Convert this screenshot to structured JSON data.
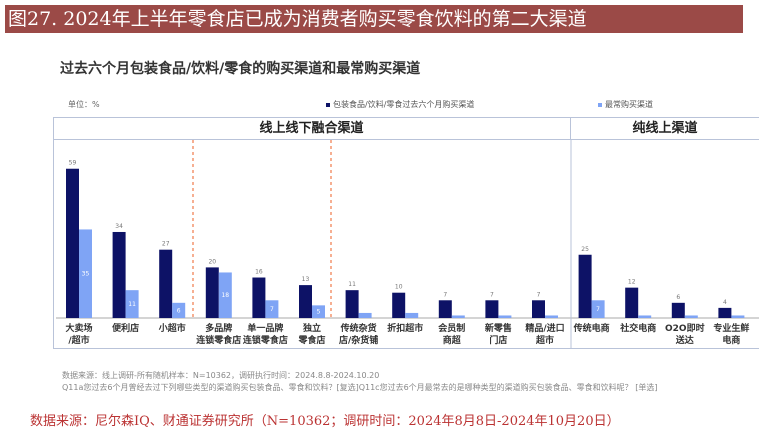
{
  "banner": "图27. 2024年上半年零食店已成为消费者购买零食饮料的第二大渠道",
  "source": "数据来源：尼尔森IQ、财通证券研究所（N=10362；调研时间：2024年8月8日-2024年10月20日）",
  "colors": {
    "dark": "#0d1266",
    "light": "#7fa4f5",
    "banner": "#9b4a47",
    "divider": "#f07a4a"
  },
  "chart_data": {
    "type": "bar",
    "title": "过去六个月包装食品/饮料/零食的购买渠道和最常购买渠道",
    "unit": "单位：%",
    "groups": [
      {
        "label": "线上线下融合渠道"
      },
      {
        "label": "纯线上渠道"
      }
    ],
    "categories": [
      "大卖场/超市",
      "便利店",
      "小超市",
      "多品牌连锁零食店",
      "单一品牌连锁零食店",
      "独立零食店",
      "传统杂货店/杂货铺",
      "折扣超市",
      "会员制商超",
      "新零售门店",
      "精品/进口超市",
      "传统电商",
      "社交电商",
      "O2O即时送达",
      "专业生鲜电商"
    ],
    "category_lines": [
      [
        "大卖场",
        "/超市"
      ],
      [
        "便利店"
      ],
      [
        "小超市"
      ],
      [
        "多品牌",
        "连锁零食店"
      ],
      [
        "单一品牌",
        "连锁零食店"
      ],
      [
        "独立",
        "零食店"
      ],
      [
        "传统杂货",
        "店/杂货铺"
      ],
      [
        "折扣超市"
      ],
      [
        "会员制",
        "商超"
      ],
      [
        "新零售",
        "门店"
      ],
      [
        "精品/进口",
        "超市"
      ],
      [
        "传统电商"
      ],
      [
        "社交电商"
      ],
      [
        "O2O即时",
        "送达"
      ],
      [
        "专业生鲜",
        "电商"
      ]
    ],
    "series": [
      {
        "name": "包装食品/饮料/零食过去六个月购买渠道",
        "values": [
          59,
          34,
          27,
          20,
          16,
          13,
          11,
          10,
          7,
          7,
          7,
          25,
          12,
          6,
          4
        ]
      },
      {
        "name": "最常购买渠道",
        "values": [
          35,
          11,
          6,
          18,
          7,
          5,
          2,
          2,
          1,
          1,
          1,
          7,
          1,
          1,
          1
        ]
      }
    ],
    "labeled_light": [
      true,
      true,
      true,
      true,
      true,
      true,
      false,
      false,
      false,
      false,
      false,
      true,
      false,
      false,
      false
    ]
  },
  "footnote": {
    "line1": "数据来源：线上调研-所有随机样本：N=10362，调研执行时间：2024.8.8-2024.10.20",
    "line2": "Q11a您过去6个月曾经去过下列哪些类型的渠道购买包装食品、零食和饮料？[复选]Q11c您过去6个月最常去的是哪种类型的渠道购买包装食品、零食和饮料呢？ [单选]"
  }
}
